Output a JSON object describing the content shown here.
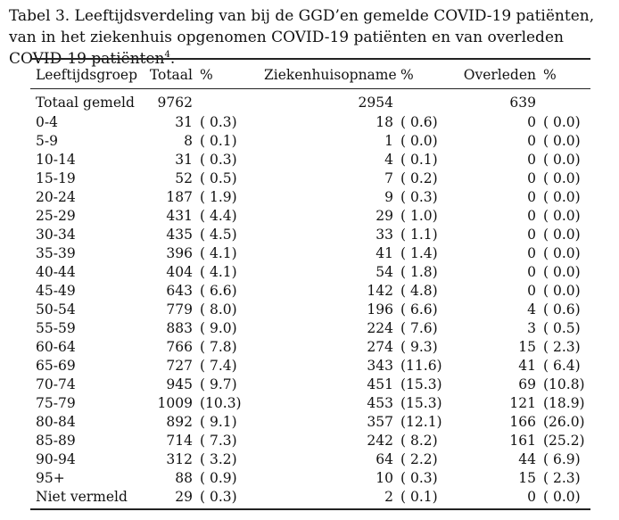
{
  "caption": {
    "main": "Tabel 3. Leeftijdsverdeling van bij de GGD’en gemelde COVID-19 patiënten, van in het ziekenhuis opgenomen COVID-19 patiënten en van overleden COVID-19 patiënten",
    "footnote": "4"
  },
  "headers": {
    "group": "Leeftijdsgroep",
    "total": "Totaal",
    "total_pct": "%",
    "hospital": "Ziekenhuisopname",
    "hospital_pct": "%",
    "deceased": "Overleden",
    "deceased_pct": "%"
  },
  "totals": {
    "label": "Totaal gemeld",
    "total": "9762",
    "hospital": "2954",
    "deceased": "639"
  },
  "rows": [
    {
      "group": "0-4",
      "total": "31",
      "total_pct": "( 0.3)",
      "hospital": "18",
      "hospital_pct": "( 0.6)",
      "deceased": "0",
      "deceased_pct": "( 0.0)"
    },
    {
      "group": "5-9",
      "total": "8",
      "total_pct": "( 0.1)",
      "hospital": "1",
      "hospital_pct": "( 0.0)",
      "deceased": "0",
      "deceased_pct": "( 0.0)"
    },
    {
      "group": "10-14",
      "total": "31",
      "total_pct": "( 0.3)",
      "hospital": "4",
      "hospital_pct": "( 0.1)",
      "deceased": "0",
      "deceased_pct": "( 0.0)"
    },
    {
      "group": "15-19",
      "total": "52",
      "total_pct": "( 0.5)",
      "hospital": "7",
      "hospital_pct": "( 0.2)",
      "deceased": "0",
      "deceased_pct": "( 0.0)"
    },
    {
      "group": "20-24",
      "total": "187",
      "total_pct": "( 1.9)",
      "hospital": "9",
      "hospital_pct": "( 0.3)",
      "deceased": "0",
      "deceased_pct": "( 0.0)"
    },
    {
      "group": "25-29",
      "total": "431",
      "total_pct": "( 4.4)",
      "hospital": "29",
      "hospital_pct": "( 1.0)",
      "deceased": "0",
      "deceased_pct": "( 0.0)"
    },
    {
      "group": "30-34",
      "total": "435",
      "total_pct": "( 4.5)",
      "hospital": "33",
      "hospital_pct": "( 1.1)",
      "deceased": "0",
      "deceased_pct": "( 0.0)"
    },
    {
      "group": "35-39",
      "total": "396",
      "total_pct": "( 4.1)",
      "hospital": "41",
      "hospital_pct": "( 1.4)",
      "deceased": "0",
      "deceased_pct": "( 0.0)"
    },
    {
      "group": "40-44",
      "total": "404",
      "total_pct": "( 4.1)",
      "hospital": "54",
      "hospital_pct": "( 1.8)",
      "deceased": "0",
      "deceased_pct": "( 0.0)"
    },
    {
      "group": "45-49",
      "total": "643",
      "total_pct": "( 6.6)",
      "hospital": "142",
      "hospital_pct": "( 4.8)",
      "deceased": "0",
      "deceased_pct": "( 0.0)"
    },
    {
      "group": "50-54",
      "total": "779",
      "total_pct": "( 8.0)",
      "hospital": "196",
      "hospital_pct": "( 6.6)",
      "deceased": "4",
      "deceased_pct": "( 0.6)"
    },
    {
      "group": "55-59",
      "total": "883",
      "total_pct": "( 9.0)",
      "hospital": "224",
      "hospital_pct": "( 7.6)",
      "deceased": "3",
      "deceased_pct": "( 0.5)"
    },
    {
      "group": "60-64",
      "total": "766",
      "total_pct": "( 7.8)",
      "hospital": "274",
      "hospital_pct": "( 9.3)",
      "deceased": "15",
      "deceased_pct": "( 2.3)"
    },
    {
      "group": "65-69",
      "total": "727",
      "total_pct": "( 7.4)",
      "hospital": "343",
      "hospital_pct": "(11.6)",
      "deceased": "41",
      "deceased_pct": "( 6.4)"
    },
    {
      "group": "70-74",
      "total": "945",
      "total_pct": "( 9.7)",
      "hospital": "451",
      "hospital_pct": "(15.3)",
      "deceased": "69",
      "deceased_pct": "(10.8)"
    },
    {
      "group": "75-79",
      "total": "1009",
      "total_pct": "(10.3)",
      "hospital": "453",
      "hospital_pct": "(15.3)",
      "deceased": "121",
      "deceased_pct": "(18.9)"
    },
    {
      "group": "80-84",
      "total": "892",
      "total_pct": "( 9.1)",
      "hospital": "357",
      "hospital_pct": "(12.1)",
      "deceased": "166",
      "deceased_pct": "(26.0)"
    },
    {
      "group": "85-89",
      "total": "714",
      "total_pct": "( 7.3)",
      "hospital": "242",
      "hospital_pct": "( 8.2)",
      "deceased": "161",
      "deceased_pct": "(25.2)"
    },
    {
      "group": "90-94",
      "total": "312",
      "total_pct": "( 3.2)",
      "hospital": "64",
      "hospital_pct": "( 2.2)",
      "deceased": "44",
      "deceased_pct": "( 6.9)"
    },
    {
      "group": "95+",
      "total": "88",
      "total_pct": "( 0.9)",
      "hospital": "10",
      "hospital_pct": "( 0.3)",
      "deceased": "15",
      "deceased_pct": "( 2.3)"
    },
    {
      "group": "Niet vermeld",
      "total": "29",
      "total_pct": "( 0.3)",
      "hospital": "2",
      "hospital_pct": "( 0.1)",
      "deceased": "0",
      "deceased_pct": "( 0.0)"
    }
  ]
}
